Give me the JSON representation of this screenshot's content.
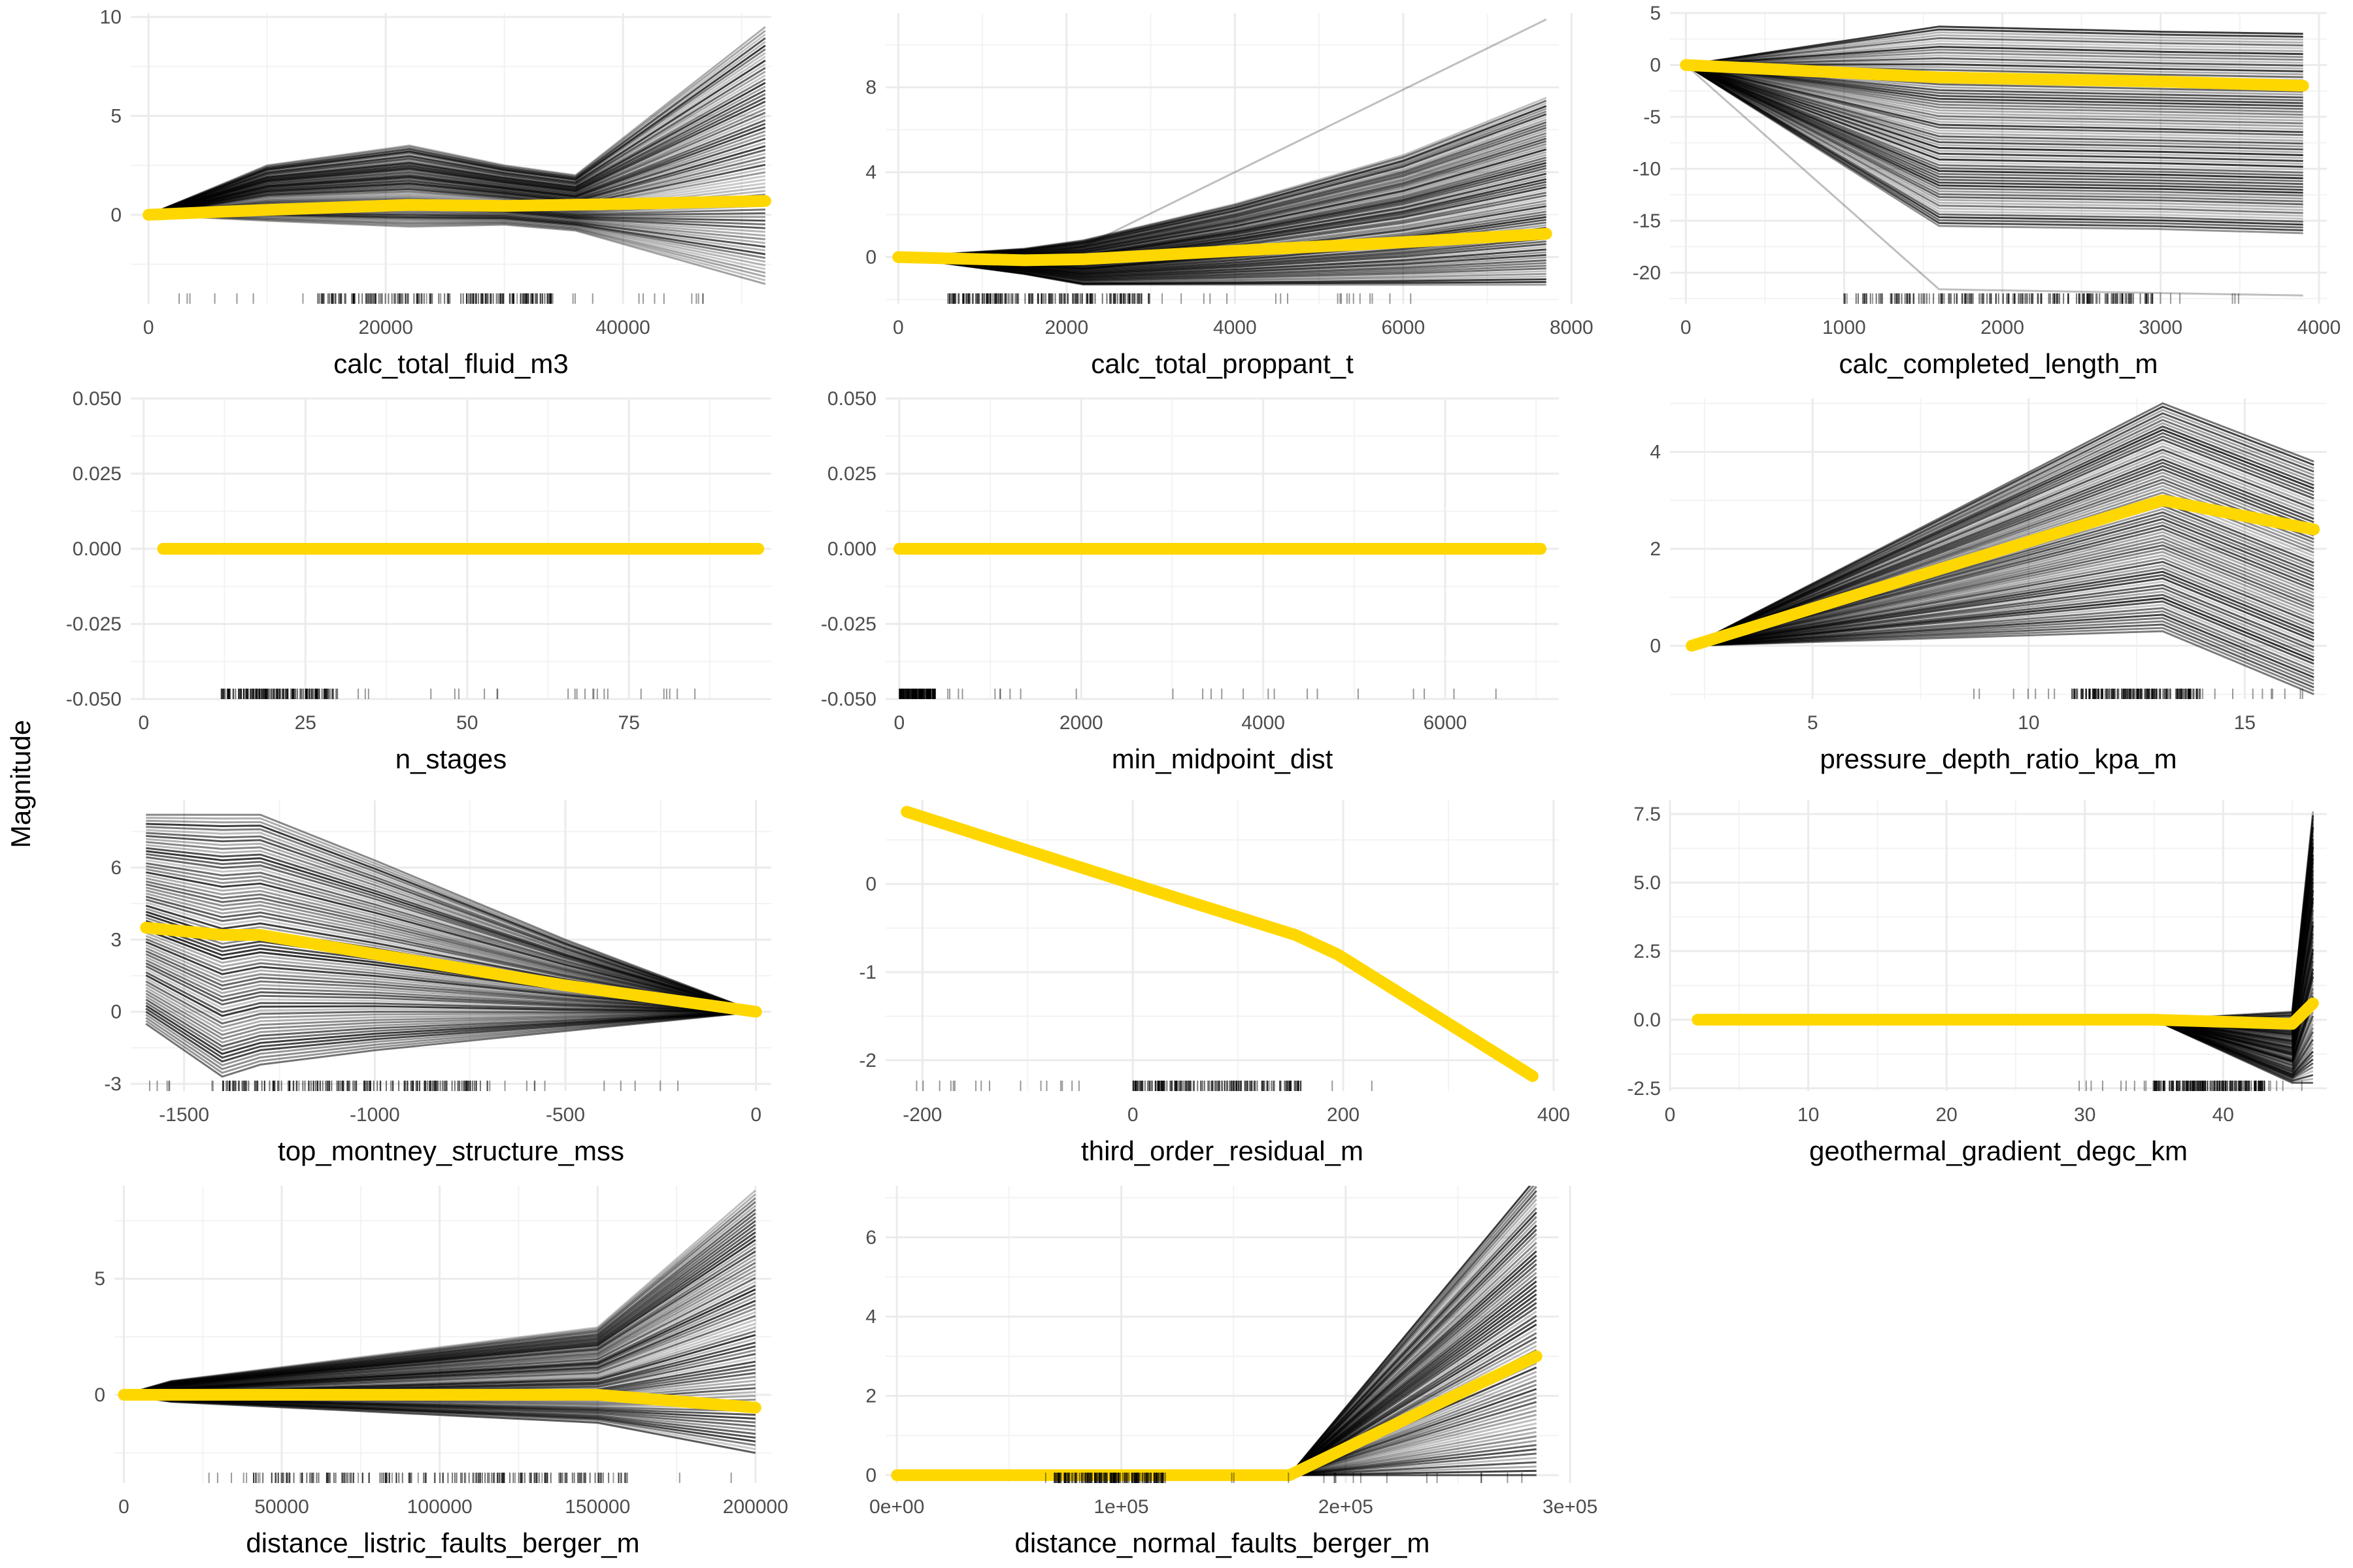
{
  "figure": {
    "ylabel": "Magnitude",
    "grid": true,
    "colors": {
      "ice": "#000000",
      "pdp": "#FFD700",
      "grid": "#EBEBEB"
    }
  },
  "chart_data": [
    {
      "type": "line",
      "title": "",
      "xlabel": "calc_total_fluid_m3",
      "ylabel": "",
      "xlim": [
        -1500,
        52500
      ],
      "ylim": [
        -4.5,
        10.2
      ],
      "xticks": [
        {
          "v": 0,
          "label": "0"
        },
        {
          "v": 20000,
          "label": "20000"
        },
        {
          "v": 40000,
          "label": "40000"
        }
      ],
      "yticks": [
        {
          "v": 0,
          "label": "0"
        },
        {
          "v": 5,
          "label": "5"
        },
        {
          "v": 10,
          "label": "10"
        }
      ],
      "pdp": {
        "x": [
          0,
          10000,
          22000,
          30000,
          40000,
          52000
        ],
        "y": [
          0,
          0.25,
          0.5,
          0.45,
          0.55,
          0.7
        ]
      },
      "ice": {
        "x": [
          0,
          10000,
          22000,
          30000,
          36000,
          52000
        ],
        "low": [
          0,
          -0.3,
          -0.6,
          -0.5,
          -0.8,
          -3.5
        ],
        "high": [
          0,
          2.5,
          3.5,
          2.5,
          2.0,
          9.5
        ],
        "n": 70
      },
      "rug": {
        "min": 2000,
        "max": 48000,
        "dense_min": 14000,
        "dense_max": 34000
      }
    },
    {
      "type": "line",
      "title": "",
      "xlabel": "calc_total_proppant_t",
      "ylabel": "",
      "xlim": [
        -150,
        7850
      ],
      "ylim": [
        -2.2,
        11.5
      ],
      "xticks": [
        {
          "v": 0,
          "label": "0"
        },
        {
          "v": 2000,
          "label": "2000"
        },
        {
          "v": 4000,
          "label": "4000"
        },
        {
          "v": 6000,
          "label": "6000"
        },
        {
          "v": 8000,
          "label": "8000"
        }
      ],
      "yticks": [
        {
          "v": 0,
          "label": "0"
        },
        {
          "v": 4,
          "label": "4"
        },
        {
          "v": 8,
          "label": "8"
        }
      ],
      "pdp": {
        "x": [
          0,
          1500,
          2200,
          4000,
          6000,
          7700
        ],
        "y": [
          0,
          -0.15,
          -0.1,
          0.3,
          0.7,
          1.1
        ]
      },
      "ice": {
        "x": [
          0,
          1500,
          2200,
          4000,
          6000,
          7700
        ],
        "low": [
          0,
          -0.8,
          -1.3,
          -1.3,
          -1.3,
          -1.3
        ],
        "high": [
          0,
          0.4,
          0.8,
          2.5,
          4.8,
          7.5
        ],
        "n": 70
      },
      "outlier": {
        "x": [
          0,
          1500,
          2200,
          7700
        ],
        "y": [
          0,
          0,
          0.5,
          11.2
        ]
      },
      "rug": {
        "min": 500,
        "max": 6500,
        "dense_min": 600,
        "dense_max": 3000
      }
    },
    {
      "type": "line",
      "title": "",
      "xlabel": "calc_completed_length_m",
      "ylabel": "",
      "xlim": [
        -100,
        4050
      ],
      "ylim": [
        -23,
        5
      ],
      "xticks": [
        {
          "v": 0,
          "label": "0"
        },
        {
          "v": 1000,
          "label": "1000"
        },
        {
          "v": 2000,
          "label": "2000"
        },
        {
          "v": 3000,
          "label": "3000"
        },
        {
          "v": 4000,
          "label": "4000"
        }
      ],
      "yticks": [
        {
          "v": 5,
          "label": "5"
        },
        {
          "v": 0,
          "label": "0"
        },
        {
          "v": -5,
          "label": "-5"
        },
        {
          "v": -10,
          "label": "-10"
        },
        {
          "v": -15,
          "label": "-15"
        },
        {
          "v": -20,
          "label": "-20"
        }
      ],
      "pdp": {
        "x": [
          0,
          1600,
          3000,
          3900
        ],
        "y": [
          0,
          -1.2,
          -1.6,
          -2.0
        ]
      },
      "ice": {
        "x": [
          0,
          1600,
          3000,
          3900
        ],
        "low": [
          0,
          -15.5,
          -15.8,
          -16.2
        ],
        "high": [
          0,
          3.7,
          3.2,
          3.0
        ],
        "n": 70
      },
      "outlier": {
        "x": [
          0,
          1600,
          3900
        ],
        "y": [
          0,
          -21.6,
          -22.2
        ]
      },
      "rug": {
        "min": 600,
        "max": 3500,
        "dense_min": 1000,
        "dense_max": 3000
      }
    },
    {
      "type": "line",
      "title": "",
      "xlabel": "n_stages",
      "ylabel": "",
      "xlim": [
        -2,
        97
      ],
      "ylim": [
        -0.05,
        0.05
      ],
      "xticks": [
        {
          "v": 0,
          "label": "0"
        },
        {
          "v": 25,
          "label": "25"
        },
        {
          "v": 50,
          "label": "50"
        },
        {
          "v": 75,
          "label": "75"
        }
      ],
      "yticks": [
        {
          "v": 0.05,
          "label": "0.050"
        },
        {
          "v": 0.025,
          "label": "0.025"
        },
        {
          "v": 0,
          "label": "0.000"
        },
        {
          "v": -0.025,
          "label": "-0.025"
        },
        {
          "v": -0.05,
          "label": "-0.050"
        }
      ],
      "pdp": {
        "x": [
          3,
          95
        ],
        "y": [
          0,
          0
        ]
      },
      "ice": {
        "x": [
          3,
          95
        ],
        "low": [
          0,
          0
        ],
        "high": [
          0,
          0
        ],
        "n": 0
      },
      "rug": {
        "min": 10,
        "max": 93,
        "dense_min": 12,
        "dense_max": 30
      }
    },
    {
      "type": "line",
      "title": "",
      "xlabel": "min_midpoint_dist",
      "ylabel": "",
      "xlim": [
        -150,
        7250
      ],
      "ylim": [
        -0.05,
        0.05
      ],
      "xticks": [
        {
          "v": 0,
          "label": "0"
        },
        {
          "v": 2000,
          "label": "2000"
        },
        {
          "v": 4000,
          "label": "4000"
        },
        {
          "v": 6000,
          "label": "6000"
        }
      ],
      "yticks": [
        {
          "v": 0.05,
          "label": "0.050"
        },
        {
          "v": 0.025,
          "label": "0.025"
        },
        {
          "v": 0,
          "label": "0.000"
        },
        {
          "v": -0.025,
          "label": "-0.025"
        },
        {
          "v": -0.05,
          "label": "-0.050"
        }
      ],
      "pdp": {
        "x": [
          0,
          7050
        ],
        "y": [
          0,
          0
        ]
      },
      "ice": {
        "x": [
          0,
          7050
        ],
        "low": [
          0,
          0
        ],
        "high": [
          0,
          0
        ],
        "n": 0
      },
      "rug": {
        "min": 0,
        "max": 7000,
        "dense_min": 0,
        "dense_max": 400
      }
    },
    {
      "type": "line",
      "title": "",
      "xlabel": "pressure_depth_ratio_kpa_m",
      "ylabel": "",
      "xlim": [
        1.7,
        16.9
      ],
      "ylim": [
        -1.1,
        5.1
      ],
      "xticks": [
        {
          "v": 5,
          "label": "5"
        },
        {
          "v": 10,
          "label": "10"
        },
        {
          "v": 15,
          "label": "15"
        }
      ],
      "yticks": [
        {
          "v": 0,
          "label": "0"
        },
        {
          "v": 2,
          "label": "2"
        },
        {
          "v": 4,
          "label": "4"
        }
      ],
      "pdp": {
        "x": [
          2.2,
          13.1,
          16.6
        ],
        "y": [
          0,
          3.0,
          2.4
        ]
      },
      "ice": {
        "x": [
          2.2,
          13.1,
          16.6
        ],
        "low": [
          0,
          0.3,
          -1.0
        ],
        "high": [
          0,
          5.0,
          3.8
        ],
        "n": 70
      },
      "rug": {
        "min": 8.5,
        "max": 16.6,
        "dense_min": 11,
        "dense_max": 14
      }
    },
    {
      "type": "line",
      "title": "",
      "xlabel": "top_montney_structure_mss",
      "ylabel": "",
      "xlim": [
        -1640,
        40
      ],
      "ylim": [
        -3.3,
        8.8
      ],
      "xticks": [
        {
          "v": -1500,
          "label": "-1500"
        },
        {
          "v": -1000,
          "label": "-1000"
        },
        {
          "v": -500,
          "label": "-500"
        },
        {
          "v": 0,
          "label": "0"
        }
      ],
      "yticks": [
        {
          "v": -3,
          "label": "-3"
        },
        {
          "v": 0,
          "label": "0"
        },
        {
          "v": 3,
          "label": "3"
        },
        {
          "v": 6,
          "label": "6"
        }
      ],
      "pdp": {
        "x": [
          -1600,
          -1400,
          -1300,
          -1000,
          -500,
          0
        ],
        "y": [
          3.5,
          3.2,
          3.2,
          2.4,
          1.1,
          0
        ]
      },
      "ice": {
        "x": [
          -1600,
          -1400,
          -1300,
          -1000,
          -500,
          0
        ],
        "low": [
          -0.5,
          -2.7,
          -2.2,
          -1.6,
          -0.8,
          0
        ],
        "high": [
          8.2,
          8.2,
          8.2,
          6.3,
          3.0,
          0
        ],
        "n": 70
      },
      "rug": {
        "min": -1600,
        "max": -200,
        "dense_min": -1400,
        "dense_max": -700
      }
    },
    {
      "type": "line",
      "title": "",
      "xlabel": "third_order_residual_m",
      "ylabel": "",
      "xlim": [
        -235,
        405
      ],
      "ylim": [
        -2.35,
        0.95
      ],
      "xticks": [
        {
          "v": -200,
          "label": "-200"
        },
        {
          "v": 0,
          "label": "0"
        },
        {
          "v": 200,
          "label": "200"
        },
        {
          "v": 400,
          "label": "400"
        }
      ],
      "yticks": [
        {
          "v": 0,
          "label": "0"
        },
        {
          "v": -1,
          "label": "-1"
        },
        {
          "v": -2,
          "label": "-2"
        }
      ],
      "pdp": {
        "x": [
          -215,
          0,
          155,
          195,
          380
        ],
        "y": [
          0.82,
          0.0,
          -0.58,
          -0.8,
          -2.18
        ]
      },
      "ice": {
        "x": [
          -215,
          380
        ],
        "low": [
          0,
          0
        ],
        "high": [
          0,
          0
        ],
        "n": 0
      },
      "rug": {
        "min": -210,
        "max": 250,
        "dense_min": 0,
        "dense_max": 160
      }
    },
    {
      "type": "line",
      "title": "",
      "xlabel": "geothermal_gradient_degc_km",
      "ylabel": "",
      "xlim": [
        0,
        47.5
      ],
      "ylim": [
        -2.6,
        8.0
      ],
      "xticks": [
        {
          "v": 0,
          "label": "0"
        },
        {
          "v": 10,
          "label": "10"
        },
        {
          "v": 20,
          "label": "20"
        },
        {
          "v": 30,
          "label": "30"
        },
        {
          "v": 40,
          "label": "40"
        }
      ],
      "yticks": [
        {
          "v": 7.5,
          "label": "7.5"
        },
        {
          "v": 5,
          "label": "5.0"
        },
        {
          "v": 2.5,
          "label": "2.5"
        },
        {
          "v": 0,
          "label": "0.0"
        },
        {
          "v": -2.5,
          "label": "-2.5"
        }
      ],
      "pdp": {
        "x": [
          2,
          35,
          45,
          46.5
        ],
        "y": [
          0,
          0,
          -0.15,
          0.6
        ]
      },
      "ice": {
        "x": [
          2,
          35,
          45,
          46.5
        ],
        "low": [
          0,
          0,
          -2.3,
          -2.3
        ],
        "high": [
          0,
          0,
          0.3,
          7.6
        ],
        "n": 70
      },
      "rug": {
        "min": 29,
        "max": 46,
        "dense_min": 35,
        "dense_max": 43
      }
    },
    {
      "type": "line",
      "title": "",
      "xlabel": "distance_listric_faults_berger_m",
      "ylabel": "",
      "xlim": [
        -3000,
        205000
      ],
      "ylim": [
        -3.8,
        9.0
      ],
      "xticks": [
        {
          "v": 0,
          "label": "0"
        },
        {
          "v": 50000,
          "label": "50000"
        },
        {
          "v": 100000,
          "label": "100000"
        },
        {
          "v": 150000,
          "label": "150000"
        },
        {
          "v": 200000,
          "label": "200000"
        }
      ],
      "yticks": [
        {
          "v": 0,
          "label": "0"
        },
        {
          "v": 5,
          "label": "5"
        }
      ],
      "pdp": {
        "x": [
          0,
          15000,
          150000,
          200000
        ],
        "y": [
          0,
          0,
          0,
          -0.55
        ]
      },
      "ice": {
        "x": [
          0,
          15000,
          150000,
          200000
        ],
        "low": [
          0,
          -0.3,
          -1.2,
          -2.5
        ],
        "high": [
          0,
          0.6,
          2.9,
          8.8
        ],
        "n": 70
      },
      "rug": {
        "min": 20000,
        "max": 200000,
        "dense_min": 40000,
        "dense_max": 160000
      }
    },
    {
      "type": "line",
      "title": "",
      "xlabel": "distance_normal_faults_berger_m",
      "ylabel": "",
      "xlim": [
        -5000,
        295000
      ],
      "ylim": [
        -0.2,
        7.3
      ],
      "xticks": [
        {
          "v": 0,
          "label": "0e+00"
        },
        {
          "v": 100000,
          "label": "1e+05"
        },
        {
          "v": 200000,
          "label": "2e+05"
        },
        {
          "v": 300000,
          "label": "3e+05"
        }
      ],
      "yticks": [
        {
          "v": 0,
          "label": "0"
        },
        {
          "v": 2,
          "label": "2"
        },
        {
          "v": 4,
          "label": "4"
        },
        {
          "v": 6,
          "label": "6"
        }
      ],
      "pdp": {
        "x": [
          0,
          175000,
          285000
        ],
        "y": [
          0,
          0,
          3.0
        ]
      },
      "ice": {
        "x": [
          0,
          175000,
          285000
        ],
        "low": [
          0,
          0,
          0
        ],
        "high": [
          0,
          0,
          7.5
        ],
        "n": 70
      },
      "rug": {
        "min": 60000,
        "max": 285000,
        "dense_min": 70000,
        "dense_max": 120000
      }
    }
  ]
}
